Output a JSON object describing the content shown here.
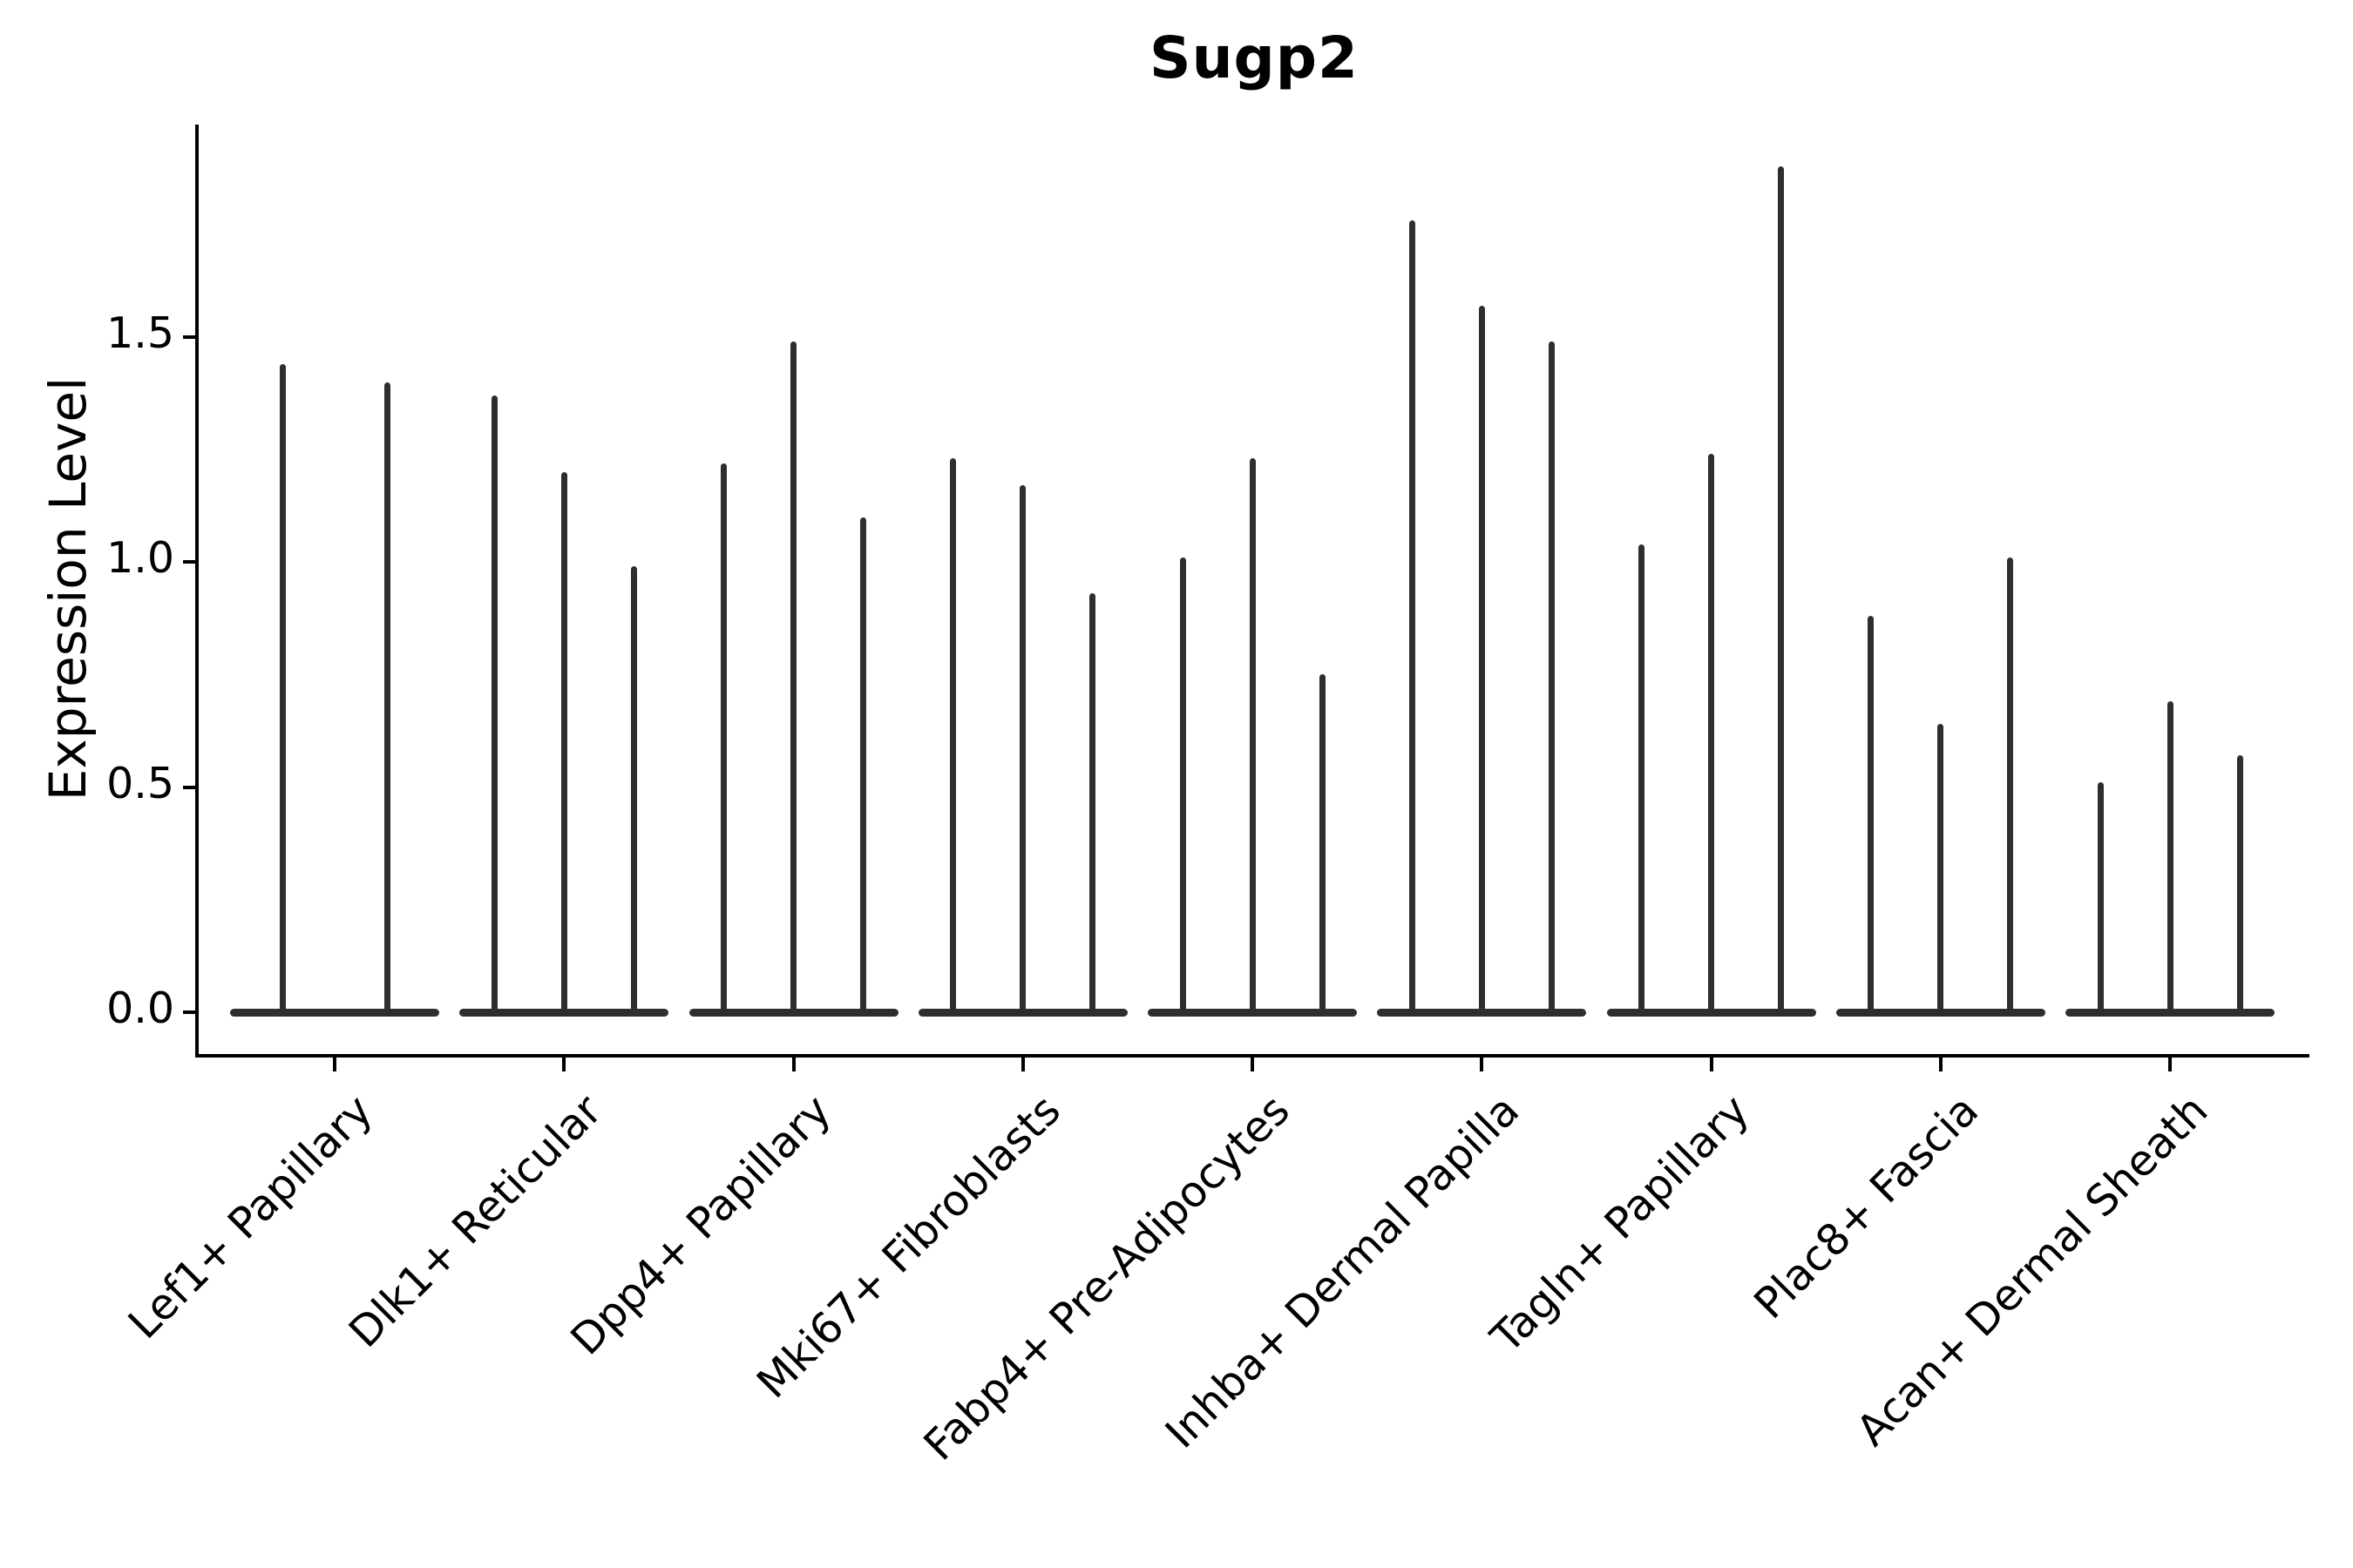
{
  "chart_data": {
    "type": "violin",
    "title": "Sugp2",
    "ylabel": "Expression Level",
    "xlabel": "",
    "yticks": [
      0.0,
      0.5,
      1.0,
      1.5
    ],
    "ytick_labels": [
      "0.0",
      "0.5",
      "1.0",
      "1.5"
    ],
    "ylim": [
      -0.09,
      1.97
    ],
    "grid": false,
    "legend": "none",
    "violin_color": "#2e2e2e",
    "axis_color": "#000000",
    "categories": [
      "Lef1+ Papillary",
      "Dlk1+ Reticular",
      "Dpp4+ Papillary",
      "Mki67+ Fibroblasts",
      "Fabp4+ Pre-Adipocytes",
      "Inhba+ Dermal Papilla",
      "Tagln+ Papillary",
      "Plac8+ Fascia",
      "Acan+ Dermal Sheath"
    ],
    "groups": [
      {
        "label": "Lef1+ Papillary",
        "violin_max_values": [
          1.44,
          1.4
        ]
      },
      {
        "label": "Dlk1+ Reticular",
        "violin_max_values": [
          1.37,
          1.2,
          0.99
        ]
      },
      {
        "label": "Dpp4+ Papillary",
        "violin_max_values": [
          1.22,
          1.49,
          1.1
        ]
      },
      {
        "label": "Mki67+ Fibroblasts",
        "violin_max_values": [
          1.23,
          1.17,
          0.93
        ]
      },
      {
        "label": "Fabp4+ Pre-Adipocytes",
        "violin_max_values": [
          1.01,
          1.23,
          0.75
        ]
      },
      {
        "label": "Inhba+ Dermal Papilla",
        "violin_max_values": [
          1.76,
          1.57,
          1.49
        ]
      },
      {
        "label": "Tagln+ Papillary",
        "violin_max_values": [
          1.04,
          1.24,
          1.88
        ]
      },
      {
        "label": "Plac8+ Fascia",
        "violin_max_values": [
          0.88,
          0.64,
          1.01
        ]
      },
      {
        "label": "Acan+ Dermal Sheath",
        "violin_max_values": [
          0.51,
          0.69,
          0.57
        ]
      }
    ]
  }
}
